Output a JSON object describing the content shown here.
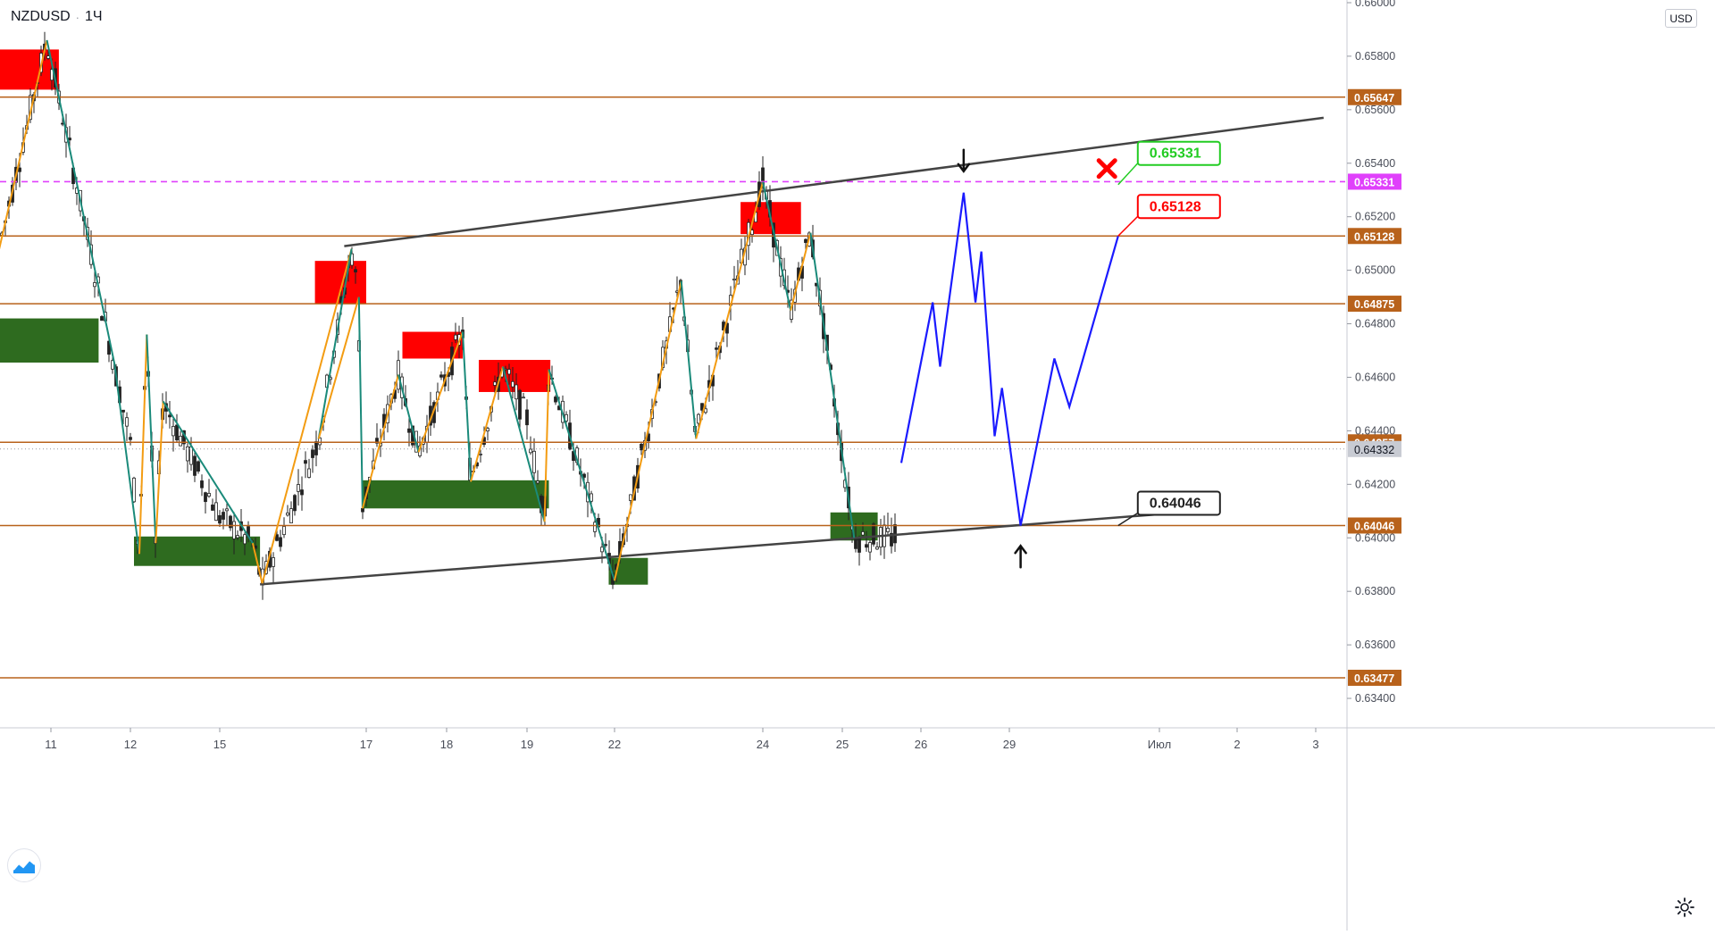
{
  "header": {
    "symbol": "NZDUSD",
    "interval": "1Ч",
    "separator": "·"
  },
  "currency": "USD",
  "icons": {
    "logo": "tradingview-logo-icon",
    "settings": "gear-icon",
    "cross": "x-mark-icon",
    "arrows": "arrow-icon"
  },
  "chart_data": {
    "type": "line",
    "title": "",
    "xlabel": "",
    "ylabel": "",
    "ylim": [
      0.6329,
      0.6601
    ],
    "grid": false,
    "y_ticks": [
      "0.66000",
      "0.65800",
      "0.65600",
      "0.65400",
      "0.65200",
      "0.65000",
      "0.64800",
      "0.64600",
      "0.64400",
      "0.64200",
      "0.64000",
      "0.63800",
      "0.63600",
      "0.63400"
    ],
    "x_ticks": [
      "11",
      "12",
      "15",
      "17",
      "18",
      "19",
      "22",
      "24",
      "25",
      "26",
      "29",
      "Июл",
      "2",
      "3"
    ],
    "horizontal_levels": [
      {
        "label": "0.65647",
        "value": 0.65647,
        "color": "#b8621b",
        "style": "solid"
      },
      {
        "label": "0.65331",
        "value": 0.65331,
        "color": "#e040fb",
        "style": "dashed"
      },
      {
        "label": "0.65128",
        "value": 0.65128,
        "color": "#b8621b",
        "style": "solid"
      },
      {
        "label": "0.64875",
        "value": 0.64875,
        "color": "#b8621b",
        "style": "solid"
      },
      {
        "label": "0.64357",
        "value": 0.64357,
        "color": "#b8621b",
        "style": "solid"
      },
      {
        "label": "0.64046",
        "value": 0.64046,
        "color": "#b8621b",
        "style": "solid"
      },
      {
        "label": "0.63477",
        "value": 0.63477,
        "color": "#b8621b",
        "style": "solid"
      }
    ],
    "current_price": {
      "label": "0.64332",
      "value": 0.64332
    },
    "colors": {
      "support_zone": "#2e6b1f",
      "resistance_zone": "#ff0000",
      "forecast": "#1a1aff",
      "zigzag_up": "#f39c12",
      "zigzag_down": "#1a8a7a",
      "trend": "#444444",
      "candle": "#222222"
    },
    "trendlines": [
      {
        "name": "upper-channel",
        "points": [
          [
            16.7,
            0.6509
          ],
          [
            33.1,
            0.6557
          ]
        ]
      },
      {
        "name": "lower-channel",
        "points": [
          [
            15.55,
            0.63826
          ],
          [
            31.25,
            0.64094
          ]
        ]
      }
    ],
    "zones": [
      {
        "kind": "resistance",
        "x": [
          10.35,
          11.1
        ],
        "y": [
          0.65675,
          0.65825
        ]
      },
      {
        "kind": "support",
        "x": [
          10.35,
          11.6
        ],
        "y": [
          0.64655,
          0.6482
        ]
      },
      {
        "kind": "resistance",
        "x": [
          16.3,
          17.0
        ],
        "y": [
          0.64875,
          0.65035
        ]
      },
      {
        "kind": "resistance",
        "x": [
          17.45,
          18.2
        ],
        "y": [
          0.6467,
          0.6477
        ]
      },
      {
        "kind": "resistance",
        "x": [
          18.4,
          19.8
        ],
        "y": [
          0.64545,
          0.64665
        ]
      },
      {
        "kind": "support",
        "x": [
          16.95,
          19.75
        ],
        "y": [
          0.6411,
          0.64215
        ]
      },
      {
        "kind": "support",
        "x": [
          12.12,
          15.55
        ],
        "y": [
          0.63895,
          0.64005
        ]
      },
      {
        "kind": "support",
        "x": [
          21.8,
          22.45
        ],
        "y": [
          0.63825,
          0.63925
        ]
      },
      {
        "kind": "resistance",
        "x": [
          23.7,
          24.48
        ],
        "y": [
          0.65135,
          0.65255
        ]
      },
      {
        "kind": "support",
        "x": [
          24.85,
          25.45
        ],
        "y": [
          0.6399,
          0.64095
        ]
      }
    ],
    "zigzag": [
      {
        "x": 10.35,
        "y": 0.6508,
        "dir": "up"
      },
      {
        "x": 10.95,
        "y": 0.6586,
        "dir": "down"
      },
      {
        "x": 11.8,
        "y": 0.6465,
        "dir": "down"
      },
      {
        "x": 12.3,
        "y": 0.6394,
        "dir": "up"
      },
      {
        "x": 12.55,
        "y": 0.6476,
        "dir": "down"
      },
      {
        "x": 12.85,
        "y": 0.6398,
        "dir": "up"
      },
      {
        "x": 13.1,
        "y": 0.6451,
        "dir": "down"
      },
      {
        "x": 15.45,
        "y": 0.6398,
        "dir": "up"
      },
      {
        "x": 15.58,
        "y": 0.6383,
        "dir": "up"
      },
      {
        "x": 16.8,
        "y": 0.6508,
        "dir": "down"
      },
      {
        "x": 16.35,
        "y": 0.6437,
        "dir": "up"
      },
      {
        "x": 16.9,
        "y": 0.649,
        "dir": "down"
      },
      {
        "x": 16.95,
        "y": 0.6411,
        "dir": "up"
      },
      {
        "x": 17.4,
        "y": 0.6461,
        "dir": "down"
      },
      {
        "x": 17.65,
        "y": 0.6432,
        "dir": "up"
      },
      {
        "x": 18.2,
        "y": 0.6477,
        "dir": "down"
      },
      {
        "x": 18.3,
        "y": 0.6421,
        "dir": "up"
      },
      {
        "x": 18.7,
        "y": 0.6464,
        "dir": "down"
      },
      {
        "x": 19.6,
        "y": 0.6406,
        "dir": "up"
      },
      {
        "x": 19.75,
        "y": 0.6463,
        "dir": "down"
      },
      {
        "x": 22.0,
        "y": 0.6384,
        "dir": "up"
      },
      {
        "x": 22.9,
        "y": 0.6496,
        "dir": "down"
      },
      {
        "x": 23.1,
        "y": 0.6437,
        "dir": "up"
      },
      {
        "x": 24.0,
        "y": 0.6533,
        "dir": "down"
      },
      {
        "x": 24.35,
        "y": 0.6485,
        "dir": "up"
      },
      {
        "x": 24.6,
        "y": 0.6514,
        "dir": "down"
      },
      {
        "x": 25.15,
        "y": 0.64,
        "dir": "up"
      }
    ],
    "forecast": [
      {
        "x": 25.75,
        "y": 0.6428
      },
      {
        "x": 26.4,
        "y": 0.6488
      },
      {
        "x": 26.65,
        "y": 0.6464
      },
      {
        "x": 27.45,
        "y": 0.6529
      },
      {
        "x": 27.85,
        "y": 0.6488
      },
      {
        "x": 28.05,
        "y": 0.6507
      },
      {
        "x": 28.5,
        "y": 0.6438
      },
      {
        "x": 28.75,
        "y": 0.6456
      },
      {
        "x": 29.15,
        "y": 0.64046
      },
      {
        "x": 29.6,
        "y": 0.6467
      },
      {
        "x": 29.8,
        "y": 0.6449
      },
      {
        "x": 30.45,
        "y": 0.65128
      }
    ],
    "annotations": [
      {
        "kind": "callout",
        "text": "0.65331",
        "anchor": [
          30.45,
          0.6532
        ],
        "color": "#22cc22"
      },
      {
        "kind": "callout",
        "text": "0.65128",
        "anchor": [
          30.45,
          0.65128
        ],
        "color": "#ff0000"
      },
      {
        "kind": "callout",
        "text": "0.64046",
        "anchor": [
          30.45,
          0.64046
        ],
        "color": "#222222"
      },
      {
        "kind": "cross",
        "at": [
          30.3,
          0.6538
        ],
        "color": "#ff0000"
      },
      {
        "kind": "arrow-down",
        "at": [
          27.45,
          0.6537
        ],
        "color": "#111111"
      },
      {
        "kind": "arrow-up",
        "at": [
          29.15,
          0.6397
        ],
        "color": "#111111"
      }
    ]
  }
}
